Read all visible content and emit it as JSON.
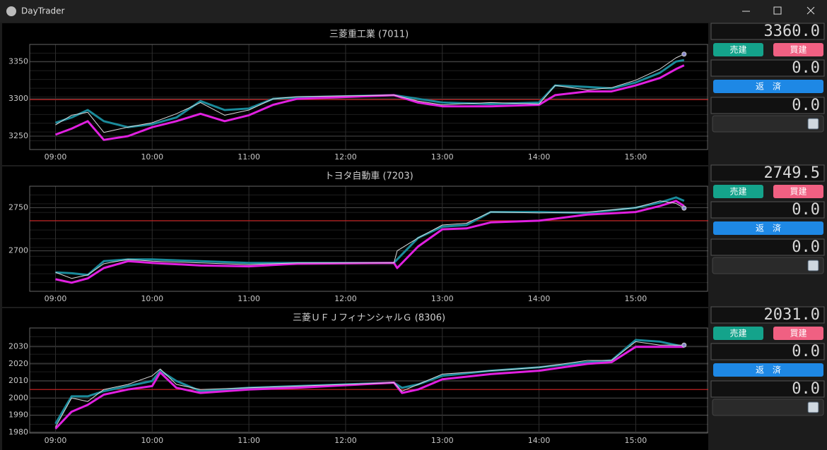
{
  "window": {
    "title": "DayTrader"
  },
  "chart_data": [
    {
      "type": "line",
      "title": "三菱重工業 (7011)",
      "x": [
        "09:00",
        "09:10",
        "09:20",
        "09:30",
        "09:45",
        "10:00",
        "10:15",
        "10:30",
        "10:45",
        "11:00",
        "11:15",
        "11:30",
        "12:30",
        "12:45",
        "13:00",
        "13:30",
        "14:00",
        "14:10",
        "14:30",
        "14:45",
        "15:00",
        "15:15",
        "15:25",
        "15:30"
      ],
      "series": [
        {
          "color": "#dcdcdc",
          "values": [
            3265,
            3278,
            3282,
            3255,
            3262,
            3268,
            3280,
            3295,
            3278,
            3285,
            3300,
            3303,
            3305,
            3297,
            3292,
            3295,
            3293,
            3318,
            3312,
            3315,
            3325,
            3340,
            3355,
            3360
          ]
        },
        {
          "color": "#1a8a9a",
          "values": [
            3268,
            3275,
            3285,
            3270,
            3262,
            3266,
            3275,
            3297,
            3285,
            3287,
            3300,
            3302,
            3305,
            3300,
            3295,
            3293,
            3295,
            3318,
            3316,
            3314,
            3322,
            3335,
            3350,
            3352
          ]
        },
        {
          "color": "#e020e0",
          "values": [
            3252,
            3260,
            3270,
            3245,
            3250,
            3262,
            3270,
            3280,
            3270,
            3278,
            3292,
            3300,
            3305,
            3295,
            3290,
            3290,
            3292,
            3305,
            3310,
            3310,
            3318,
            3328,
            3340,
            3345
          ]
        }
      ],
      "hline": {
        "value": 3299,
        "color": "#e02020"
      },
      "xlim": [
        "08:44",
        "15:45"
      ],
      "xticks": [
        "09:00",
        "10:00",
        "11:00",
        "12:00",
        "13:00",
        "14:00",
        "15:00"
      ],
      "ylim": [
        3232,
        3373
      ],
      "yticks": [
        3250,
        3300,
        3350
      ],
      "grid": true
    },
    {
      "type": "line",
      "title": "トヨタ自動車 (7203)",
      "x": [
        "09:00",
        "09:10",
        "09:20",
        "09:30",
        "09:45",
        "10:00",
        "10:30",
        "11:00",
        "11:30",
        "12:30",
        "12:32",
        "12:45",
        "13:00",
        "13:15",
        "13:30",
        "14:00",
        "14:30",
        "15:00",
        "15:15",
        "15:25",
        "15:30"
      ],
      "series": [
        {
          "color": "#dcdcdc",
          "values": [
            2675,
            2668,
            2672,
            2685,
            2690,
            2688,
            2686,
            2684,
            2686,
            2686,
            2700,
            2715,
            2730,
            2732,
            2745,
            2744,
            2745,
            2750,
            2758,
            2755,
            2749.5
          ]
        },
        {
          "color": "#1a8a9a",
          "values": [
            2675,
            2674,
            2672,
            2688,
            2690,
            2690,
            2688,
            2686,
            2686,
            2686,
            2690,
            2715,
            2728,
            2730,
            2745,
            2745,
            2744,
            2750,
            2756,
            2762,
            2758
          ]
        },
        {
          "color": "#e020e0",
          "values": [
            2667,
            2663,
            2668,
            2680,
            2688,
            2686,
            2683,
            2682,
            2685,
            2686,
            2680,
            2705,
            2725,
            2726,
            2733,
            2735,
            2742,
            2745,
            2752,
            2758,
            2752
          ]
        }
      ],
      "hline": {
        "value": 2735,
        "color": "#e02020"
      },
      "xlim": [
        "08:44",
        "15:45"
      ],
      "xticks": [
        "09:00",
        "10:00",
        "11:00",
        "12:00",
        "13:00",
        "14:00",
        "15:00"
      ],
      "ylim": [
        2653,
        2775
      ],
      "yticks": [
        2700,
        2750
      ],
      "grid": true
    },
    {
      "type": "line",
      "title": "三菱ＵＦＪフィナンシャルＧ (8306)",
      "x": [
        "09:00",
        "09:10",
        "09:20",
        "09:30",
        "09:45",
        "10:00",
        "10:05",
        "10:15",
        "10:30",
        "11:00",
        "11:30",
        "12:30",
        "12:35",
        "12:45",
        "13:00",
        "13:30",
        "14:00",
        "14:30",
        "14:45",
        "15:00",
        "15:15",
        "15:30"
      ],
      "series": [
        {
          "color": "#dcdcdc",
          "values": [
            1983,
            2000,
            1998,
            2005,
            2008,
            2013,
            2017,
            2008,
            2005,
            2006,
            2007,
            2009,
            2004,
            2008,
            2014,
            2016,
            2018,
            2022,
            2022,
            2033,
            2031,
            2031
          ]
        },
        {
          "color": "#1a8a9a",
          "values": [
            1985,
            2001,
            2001,
            2004,
            2007,
            2010,
            2016,
            2010,
            2004,
            2006,
            2007,
            2009,
            2006,
            2008,
            2013,
            2016,
            2018,
            2021,
            2022,
            2034,
            2033,
            2030
          ]
        },
        {
          "color": "#e020e0",
          "values": [
            1982,
            1992,
            1996,
            2002,
            2005,
            2007,
            2015,
            2006,
            2003,
            2005,
            2006,
            2009,
            2003,
            2005,
            2011,
            2014,
            2016,
            2020,
            2021,
            2030,
            2030,
            2030
          ]
        }
      ],
      "hline": {
        "value": 2005,
        "color": "#e02020"
      },
      "xlim": [
        "08:44",
        "15:45"
      ],
      "xticks": [
        "09:00",
        "10:00",
        "11:00",
        "12:00",
        "13:00",
        "14:00",
        "15:00"
      ],
      "ylim": [
        1979.5,
        2041
      ],
      "yticks": [
        1980,
        1990,
        2000,
        2010,
        2020,
        2030
      ],
      "grid": true
    }
  ],
  "panels": [
    {
      "price": "3360.0",
      "sell": "売建",
      "buy": "買建",
      "position": "0.0",
      "close": "返　済",
      "profit": "0.0"
    },
    {
      "price": "2749.5",
      "sell": "売建",
      "buy": "買建",
      "position": "0.0",
      "close": "返　済",
      "profit": "0.0"
    },
    {
      "price": "2031.0",
      "sell": "売建",
      "buy": "買建",
      "position": "0.0",
      "close": "返　済",
      "profit": "0.0"
    }
  ]
}
